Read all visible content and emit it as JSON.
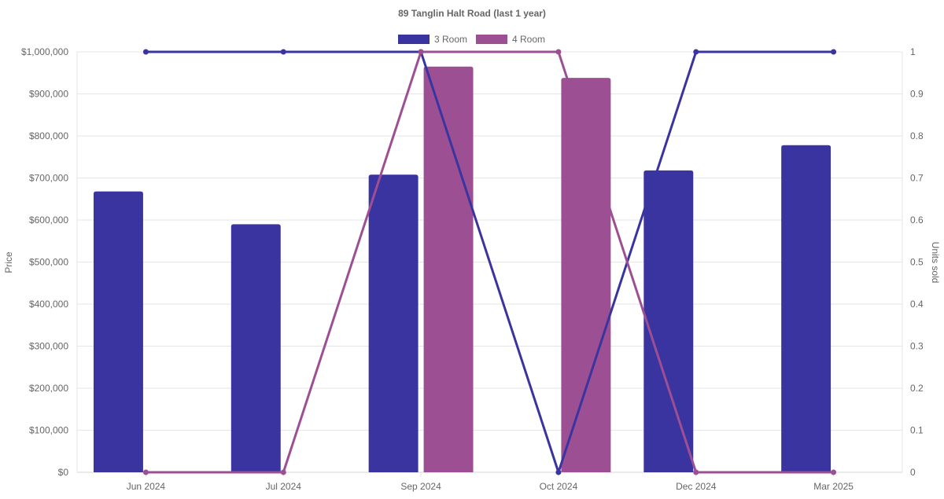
{
  "chart_data": {
    "type": "bar",
    "title": "89 Tanglin Halt Road (last 1 year)",
    "categories": [
      "Jun 2024",
      "Jul 2024",
      "Sep 2024",
      "Oct 2024",
      "Dec 2024",
      "Mar 2025"
    ],
    "y_left": {
      "label": "Price",
      "ylim": [
        0,
        1000000
      ],
      "ticks": [
        0,
        100000,
        200000,
        300000,
        400000,
        500000,
        600000,
        700000,
        800000,
        900000,
        1000000
      ],
      "tick_labels": [
        "$0",
        "$100,000",
        "$200,000",
        "$300,000",
        "$400,000",
        "$500,000",
        "$600,000",
        "$700,000",
        "$800,000",
        "$900,000",
        "$1,000,000"
      ]
    },
    "y_right": {
      "label": "Units sold",
      "ylim": [
        0,
        1
      ],
      "ticks": [
        0,
        0.1,
        0.2,
        0.3,
        0.4,
        0.5,
        0.6,
        0.7,
        0.8,
        0.9,
        1
      ],
      "tick_labels": [
        "0",
        "0.1",
        "0.2",
        "0.3",
        "0.4",
        "0.5",
        "0.6",
        "0.7",
        "0.8",
        "0.9",
        "1"
      ]
    },
    "legend": {
      "position": "top"
    },
    "grid": true,
    "series": [
      {
        "name": "3 Room",
        "color": "#3a34a0",
        "price": [
          668000,
          590000,
          708000,
          null,
          718000,
          778000
        ],
        "units_sold": [
          1,
          1,
          1,
          0,
          1,
          1
        ]
      },
      {
        "name": "4 Room",
        "color": "#9c5093",
        "price": [
          null,
          null,
          965000,
          938000,
          null,
          null
        ],
        "units_sold": [
          0,
          0,
          1,
          1,
          0,
          0
        ]
      }
    ]
  }
}
